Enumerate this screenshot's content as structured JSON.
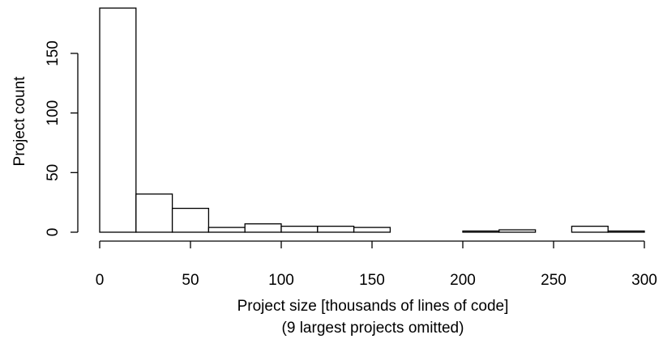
{
  "chart_data": {
    "type": "bar",
    "bins": [
      {
        "x0": 0,
        "x1": 20,
        "count": 188
      },
      {
        "x0": 20,
        "x1": 40,
        "count": 32
      },
      {
        "x0": 40,
        "x1": 60,
        "count": 20
      },
      {
        "x0": 60,
        "x1": 80,
        "count": 4
      },
      {
        "x0": 80,
        "x1": 100,
        "count": 7
      },
      {
        "x0": 100,
        "x1": 120,
        "count": 5
      },
      {
        "x0": 120,
        "x1": 140,
        "count": 5
      },
      {
        "x0": 140,
        "x1": 160,
        "count": 4
      },
      {
        "x0": 160,
        "x1": 180,
        "count": 0
      },
      {
        "x0": 180,
        "x1": 200,
        "count": 0
      },
      {
        "x0": 200,
        "x1": 220,
        "count": 1
      },
      {
        "x0": 220,
        "x1": 240,
        "count": 2
      },
      {
        "x0": 240,
        "x1": 260,
        "count": 0
      },
      {
        "x0": 260,
        "x1": 280,
        "count": 5
      },
      {
        "x0": 280,
        "x1": 300,
        "count": 1
      }
    ],
    "xlabel": "Project size [thousands of lines of code]",
    "xlabel_sub": "(9 largest projects omitted)",
    "ylabel": "Project count",
    "xlim": [
      0,
      300
    ],
    "ylim": [
      0,
      188
    ],
    "xticks": [
      0,
      50,
      100,
      150,
      200,
      250,
      300
    ],
    "yticks": [
      0,
      50,
      100,
      150
    ],
    "grid": false
  }
}
